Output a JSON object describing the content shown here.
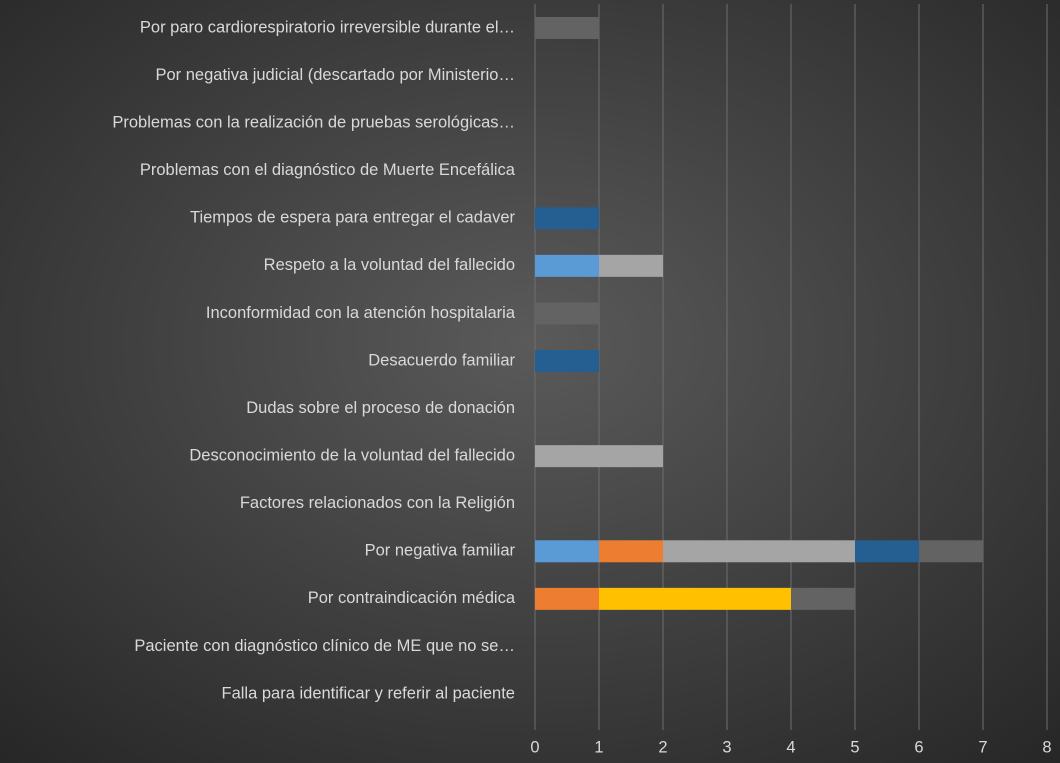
{
  "chart_data": {
    "type": "bar",
    "orientation": "horizontal",
    "stacked": true,
    "categories": [
      "Por paro cardiorespiratorio irreversible durante el…",
      "Por negativa judicial (descartado por Ministerio…",
      "Problemas con la realización de pruebas serológicas…",
      "Problemas con el diagnóstico de Muerte Encefálica",
      "Tiempos de espera para entregar el cadaver",
      "Respeto a la voluntad del fallecido",
      "Inconformidad con la atención hospitalaria",
      "Desacuerdo familiar",
      "Dudas sobre el proceso de donación",
      "Desconocimiento de la voluntad del fallecido",
      "Factores relacionados con la Religión",
      "Por negativa familiar",
      "Por contraindicación médica",
      "Paciente con diagnóstico clínico de ME que no se…",
      "Falla para identificar y referir al paciente"
    ],
    "series": [
      {
        "color": "#5b9bd5",
        "values": [
          0,
          0,
          0,
          0,
          0,
          1,
          0,
          0,
          0,
          0,
          0,
          1,
          0,
          0,
          0
        ]
      },
      {
        "color": "#ed7d31",
        "values": [
          0,
          0,
          0,
          0,
          0,
          0,
          0,
          0,
          0,
          0,
          0,
          1,
          1,
          0,
          0
        ]
      },
      {
        "color": "#a5a5a5",
        "values": [
          0,
          0,
          0,
          0,
          0,
          1,
          0,
          0,
          0,
          2,
          0,
          3,
          0,
          0,
          0
        ]
      },
      {
        "color": "#ffc000",
        "values": [
          0,
          0,
          0,
          0,
          0,
          0,
          0,
          0,
          0,
          0,
          0,
          0,
          3,
          0,
          0
        ]
      },
      {
        "color": "#255e91",
        "values": [
          0,
          0,
          0,
          0,
          1,
          0,
          0,
          1,
          0,
          0,
          0,
          1,
          0,
          0,
          0
        ]
      },
      {
        "color": "#636363",
        "values": [
          1,
          0,
          0,
          0,
          0,
          0,
          1,
          0,
          0,
          0,
          0,
          1,
          1,
          0,
          0
        ]
      }
    ],
    "xlim": [
      0,
      8
    ],
    "xticks": [
      0,
      1,
      2,
      3,
      4,
      5,
      6,
      7,
      8
    ],
    "grid": true
  }
}
